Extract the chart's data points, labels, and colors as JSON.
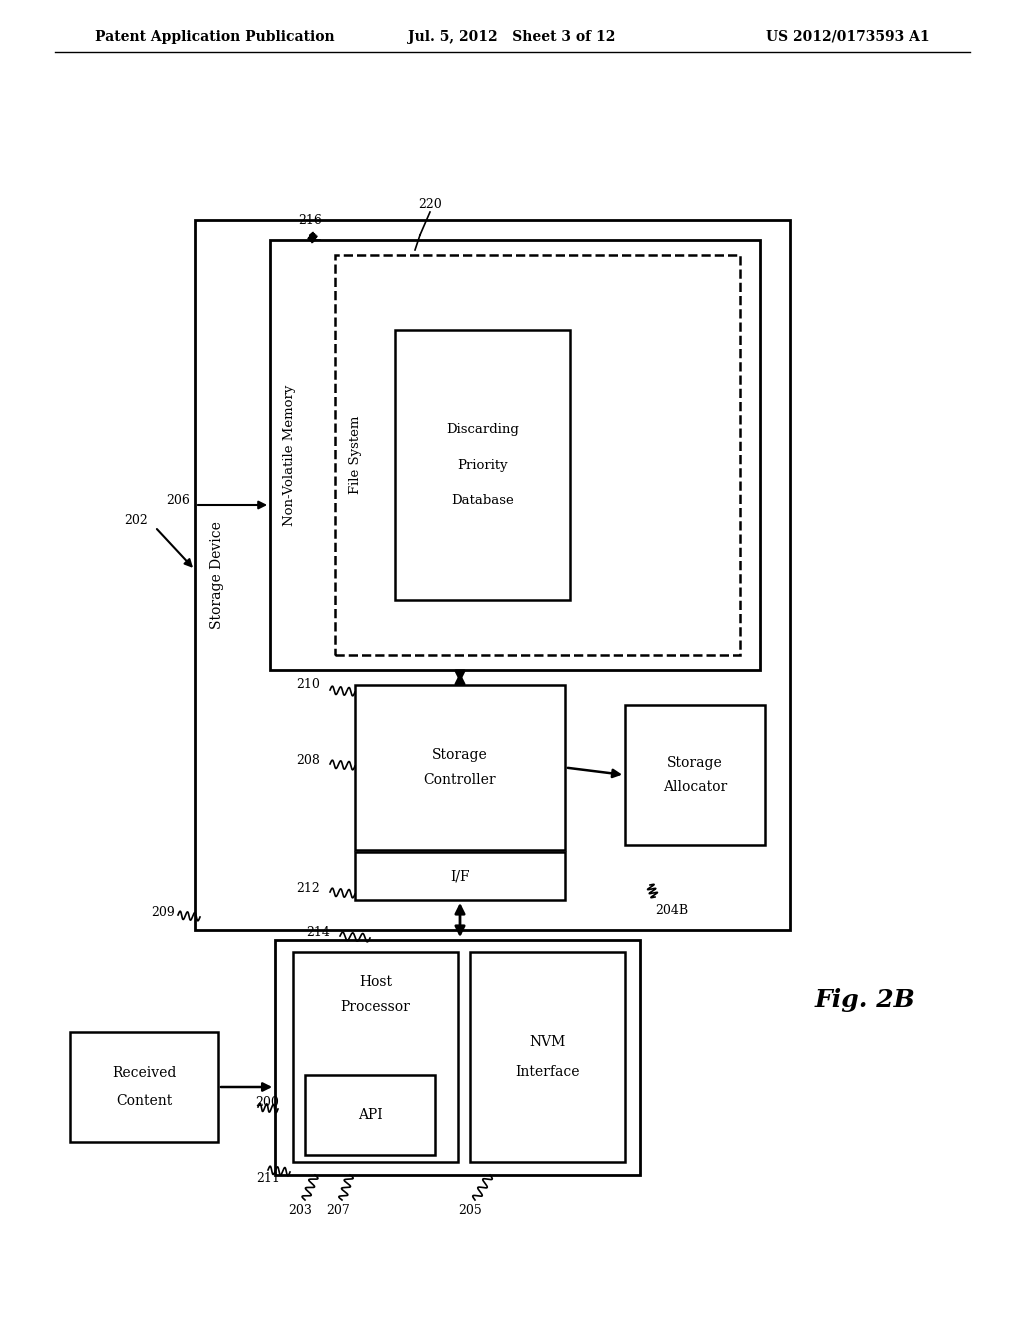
{
  "bg_color": "#ffffff",
  "header_left": "Patent Application Publication",
  "header_mid": "Jul. 5, 2012   Sheet 3 of 12",
  "header_right": "US 2012/0173593 A1",
  "fig_label": "Fig. 2B"
}
